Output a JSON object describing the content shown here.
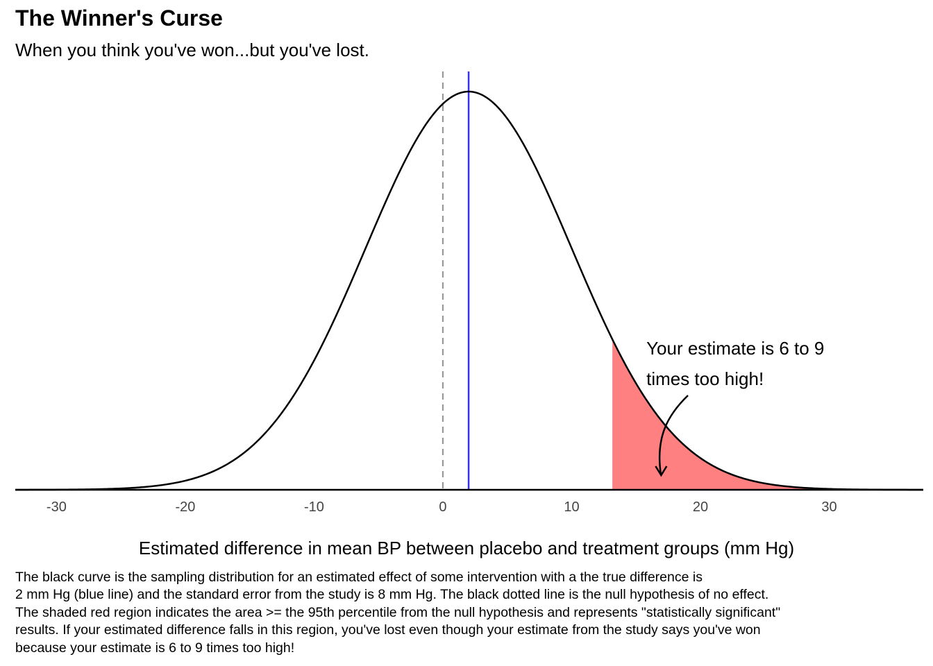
{
  "header": {
    "title": "The Winner's Curse",
    "subtitle": "When you think you've won...but you've lost."
  },
  "chart_data": {
    "type": "area",
    "distribution": "normal",
    "mean": 2,
    "sd": 8,
    "true_difference": 2,
    "null_value": 0,
    "shade_from": 13.16,
    "xlim": [
      -33.2,
      37.3
    ],
    "x_ticks": [
      -30,
      -20,
      -10,
      0,
      10,
      20,
      30
    ],
    "x_tick_labels": [
      "-30",
      "-20",
      "-10",
      "0",
      "10",
      "20",
      "30"
    ],
    "xlabel": "Estimated difference in mean BP between placebo and treatment groups (mm Hg)",
    "ylabel": "",
    "grid": false,
    "annotation": {
      "lines": [
        "Your estimate is 6 to 9",
        "times too high!"
      ],
      "x": 15.8,
      "arrow_to_x": 17
    },
    "colors": {
      "curve": "#000000",
      "true_line": "#3333ee",
      "null_line": "#999999",
      "shade": "#ff8080"
    }
  },
  "caption": {
    "lines": [
      "The black curve is the sampling distribution for an estimated effect of some intervention with a the true difference is",
      "2 mm Hg (blue line) and the standard error from the study is 8 mm Hg. The black dotted line is the null hypothesis of no effect.",
      "The shaded red region indicates the area >= the 95th percentile from the null hypothesis and represents \"statistically significant\"",
      "results. If your estimated difference falls in this region, you've lost even though your estimate from the study says you've won",
      "because your estimate is 6 to 9 times too high!"
    ]
  }
}
